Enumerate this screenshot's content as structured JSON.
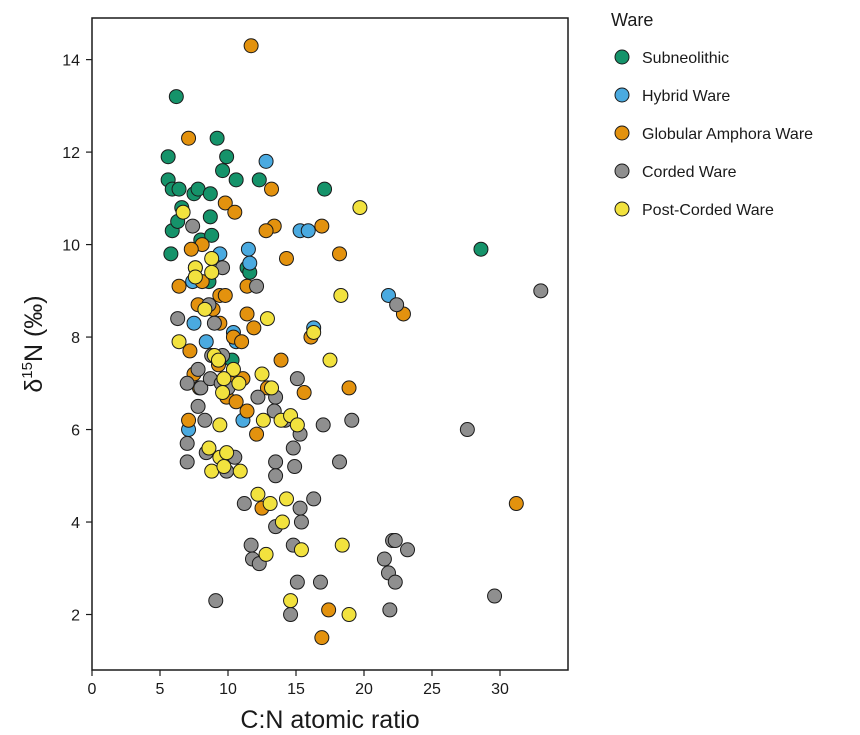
{
  "chart_data": {
    "type": "scatter",
    "xlabel": "C:N atomic ratio",
    "ylabel": "δ15N (‰)",
    "ylabel_parts": {
      "delta": "δ",
      "sup": "15",
      "rest": "N (‰)"
    },
    "xlim": [
      0,
      35
    ],
    "ylim": [
      0.8,
      14.9
    ],
    "xticks": [
      0,
      5,
      10,
      15,
      20,
      25,
      30
    ],
    "yticks": [
      2,
      4,
      6,
      8,
      10,
      12,
      14
    ],
    "grid": false,
    "legend": {
      "title": "Ware",
      "placement": "top-right outside"
    },
    "series": [
      {
        "name": "Subneolithic",
        "color": "#15936a",
        "points": [
          [
            6.2,
            13.2
          ],
          [
            5.6,
            11.9
          ],
          [
            5.6,
            11.4
          ],
          [
            5.9,
            11.2
          ],
          [
            6.4,
            11.2
          ],
          [
            7.5,
            11.1
          ],
          [
            7.8,
            11.2
          ],
          [
            8.7,
            11.1
          ],
          [
            9.2,
            12.3
          ],
          [
            9.9,
            11.9
          ],
          [
            9.6,
            11.6
          ],
          [
            10.6,
            11.4
          ],
          [
            12.3,
            11.4
          ],
          [
            17.1,
            11.2
          ],
          [
            6.6,
            10.8
          ],
          [
            5.9,
            10.3
          ],
          [
            6.3,
            10.5
          ],
          [
            5.8,
            9.8
          ],
          [
            8.7,
            10.6
          ],
          [
            8.0,
            10.1
          ],
          [
            8.8,
            10.2
          ],
          [
            7.6,
            9.5
          ],
          [
            11.4,
            9.5
          ],
          [
            11.6,
            9.4
          ],
          [
            8.6,
            9.2
          ],
          [
            10.3,
            7.5
          ],
          [
            28.6,
            9.9
          ]
        ]
      },
      {
        "name": "Hybrid Ware",
        "color": "#4aaae0",
        "points": [
          [
            12.8,
            11.8
          ],
          [
            11.5,
            9.9
          ],
          [
            9.4,
            9.8
          ],
          [
            11.6,
            9.6
          ],
          [
            15.3,
            10.3
          ],
          [
            15.9,
            10.3
          ],
          [
            7.4,
            9.2
          ],
          [
            7.5,
            8.3
          ],
          [
            8.4,
            7.9
          ],
          [
            10.4,
            8.1
          ],
          [
            10.6,
            7.9
          ],
          [
            21.8,
            8.9
          ],
          [
            16.3,
            8.2
          ],
          [
            11.1,
            6.2
          ],
          [
            7.1,
            6.0
          ]
        ]
      },
      {
        "name": "Globular Amphora Ware",
        "color": "#e3920e",
        "points": [
          [
            11.7,
            14.3
          ],
          [
            7.1,
            12.3
          ],
          [
            13.2,
            11.2
          ],
          [
            9.8,
            10.9
          ],
          [
            10.5,
            10.7
          ],
          [
            13.4,
            10.4
          ],
          [
            12.8,
            10.3
          ],
          [
            16.9,
            10.4
          ],
          [
            8.1,
            10.0
          ],
          [
            7.3,
            9.9
          ],
          [
            14.3,
            9.7
          ],
          [
            18.2,
            9.8
          ],
          [
            6.4,
            9.1
          ],
          [
            8.1,
            9.2
          ],
          [
            9.4,
            8.9
          ],
          [
            9.8,
            8.9
          ],
          [
            11.4,
            9.1
          ],
          [
            7.8,
            8.7
          ],
          [
            8.9,
            8.6
          ],
          [
            9.4,
            8.3
          ],
          [
            11.4,
            8.5
          ],
          [
            11.9,
            8.2
          ],
          [
            22.9,
            8.5
          ],
          [
            7.2,
            7.7
          ],
          [
            10.4,
            8.0
          ],
          [
            11.0,
            7.9
          ],
          [
            16.1,
            8.0
          ],
          [
            13.9,
            7.5
          ],
          [
            9.3,
            7.4
          ],
          [
            10.2,
            7.0
          ],
          [
            7.5,
            7.2
          ],
          [
            11.1,
            7.1
          ],
          [
            12.9,
            6.9
          ],
          [
            18.9,
            6.9
          ],
          [
            7.9,
            6.9
          ],
          [
            9.9,
            6.7
          ],
          [
            10.6,
            6.6
          ],
          [
            11.4,
            6.4
          ],
          [
            15.6,
            6.8
          ],
          [
            7.1,
            6.2
          ],
          [
            12.1,
            5.9
          ],
          [
            12.5,
            4.3
          ],
          [
            17.4,
            2.1
          ],
          [
            16.9,
            1.5
          ],
          [
            31.2,
            4.4
          ]
        ]
      },
      {
        "name": "Corded Ware",
        "color": "#8f8f8f",
        "points": [
          [
            33.0,
            9.0
          ],
          [
            22.4,
            8.7
          ],
          [
            7.4,
            10.4
          ],
          [
            9.6,
            9.5
          ],
          [
            12.1,
            9.1
          ],
          [
            6.3,
            8.4
          ],
          [
            8.6,
            8.7
          ],
          [
            9.0,
            8.3
          ],
          [
            8.8,
            7.6
          ],
          [
            9.6,
            7.6
          ],
          [
            7.8,
            7.3
          ],
          [
            7.0,
            7.0
          ],
          [
            8.0,
            6.9
          ],
          [
            8.7,
            7.1
          ],
          [
            9.5,
            7.0
          ],
          [
            12.2,
            6.7
          ],
          [
            13.5,
            6.7
          ],
          [
            15.1,
            7.1
          ],
          [
            7.8,
            6.5
          ],
          [
            8.3,
            6.2
          ],
          [
            10.0,
            6.9
          ],
          [
            13.4,
            6.4
          ],
          [
            14.2,
            6.2
          ],
          [
            15.3,
            5.9
          ],
          [
            17.0,
            6.1
          ],
          [
            19.1,
            6.2
          ],
          [
            7.0,
            5.7
          ],
          [
            7.0,
            5.3
          ],
          [
            8.4,
            5.5
          ],
          [
            9.9,
            5.1
          ],
          [
            10.5,
            5.4
          ],
          [
            13.5,
            5.3
          ],
          [
            13.5,
            5.0
          ],
          [
            14.8,
            5.6
          ],
          [
            14.9,
            5.2
          ],
          [
            18.2,
            5.3
          ],
          [
            11.2,
            4.4
          ],
          [
            15.3,
            4.3
          ],
          [
            15.4,
            4.0
          ],
          [
            13.5,
            3.9
          ],
          [
            16.3,
            4.5
          ],
          [
            11.7,
            3.5
          ],
          [
            11.8,
            3.2
          ],
          [
            12.3,
            3.1
          ],
          [
            14.8,
            3.5
          ],
          [
            15.1,
            2.7
          ],
          [
            16.8,
            2.7
          ],
          [
            14.6,
            2.0
          ],
          [
            9.1,
            2.3
          ],
          [
            21.5,
            3.2
          ],
          [
            21.8,
            2.9
          ],
          [
            22.1,
            3.6
          ],
          [
            22.3,
            3.6
          ],
          [
            22.3,
            2.7
          ],
          [
            21.9,
            2.1
          ],
          [
            23.2,
            3.4
          ],
          [
            27.6,
            6.0
          ],
          [
            29.6,
            2.4
          ]
        ]
      },
      {
        "name": "Post-Corded Ware",
        "color": "#f2e23e",
        "points": [
          [
            19.7,
            10.8
          ],
          [
            6.7,
            10.7
          ],
          [
            7.6,
            9.5
          ],
          [
            7.6,
            9.3
          ],
          [
            8.8,
            9.7
          ],
          [
            8.8,
            9.4
          ],
          [
            8.3,
            8.6
          ],
          [
            6.4,
            7.9
          ],
          [
            12.9,
            8.4
          ],
          [
            16.3,
            8.1
          ],
          [
            18.3,
            8.9
          ],
          [
            9.0,
            7.6
          ],
          [
            9.3,
            7.5
          ],
          [
            10.4,
            7.3
          ],
          [
            10.8,
            7.0
          ],
          [
            9.7,
            7.1
          ],
          [
            12.5,
            7.2
          ],
          [
            17.5,
            7.5
          ],
          [
            13.2,
            6.9
          ],
          [
            9.6,
            6.8
          ],
          [
            9.4,
            6.1
          ],
          [
            12.6,
            6.2
          ],
          [
            13.9,
            6.2
          ],
          [
            14.6,
            6.3
          ],
          [
            15.1,
            6.1
          ],
          [
            8.6,
            5.6
          ],
          [
            9.4,
            5.4
          ],
          [
            9.9,
            5.5
          ],
          [
            8.8,
            5.1
          ],
          [
            9.7,
            5.2
          ],
          [
            10.9,
            5.1
          ],
          [
            12.2,
            4.6
          ],
          [
            13.1,
            4.4
          ],
          [
            14.3,
            4.5
          ],
          [
            14.0,
            4.0
          ],
          [
            12.8,
            3.3
          ],
          [
            15.4,
            3.4
          ],
          [
            18.4,
            3.5
          ],
          [
            14.6,
            2.3
          ],
          [
            18.9,
            2.0
          ]
        ]
      }
    ]
  }
}
